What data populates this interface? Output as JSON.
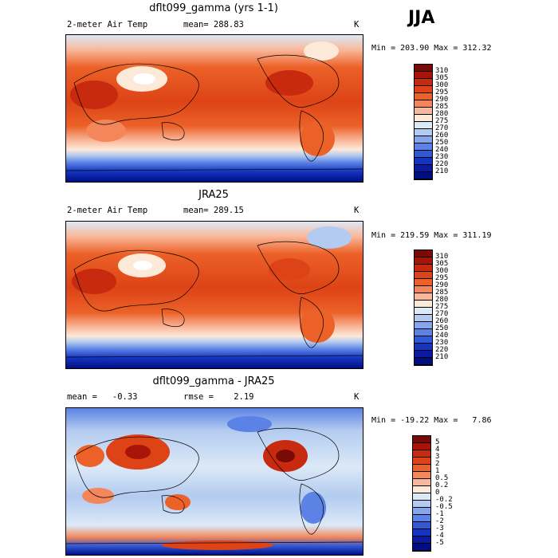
{
  "season": "JJA",
  "chart_data": [
    {
      "type": "heatmap",
      "title": "dflt099_gamma (yrs 1-1)",
      "left_label": "2-meter Air Temp",
      "center_label": "mean= 288.83",
      "unit": "K",
      "minmax": "Min = 203.90 Max = 312.32",
      "colorbar_ticks": [
        "310",
        "305",
        "300",
        "295",
        "290",
        "285",
        "280",
        "275",
        "270",
        "260",
        "250",
        "240",
        "230",
        "220",
        "210"
      ],
      "colors": [
        "#7a0a06",
        "#a81408",
        "#c82a0f",
        "#dd4316",
        "#ec6128",
        "#f3865a",
        "#f9b89b",
        "#fde9d8",
        "#dce9f7",
        "#b3cbf0",
        "#85a6ea",
        "#5b82e4",
        "#3159d6",
        "#1534c1",
        "#0b1aa0",
        "#000e83"
      ]
    },
    {
      "type": "heatmap",
      "title": "JRA25",
      "left_label": "2-meter Air Temp",
      "center_label": "mean= 289.15",
      "unit": "K",
      "minmax": "Min = 219.59 Max = 311.19",
      "colorbar_ticks": [
        "310",
        "305",
        "300",
        "295",
        "290",
        "285",
        "280",
        "275",
        "270",
        "260",
        "250",
        "240",
        "230",
        "220",
        "210"
      ],
      "colors": [
        "#7a0a06",
        "#a81408",
        "#c82a0f",
        "#dd4316",
        "#ec6128",
        "#f3865a",
        "#f9b89b",
        "#fde9d8",
        "#dce9f7",
        "#b3cbf0",
        "#85a6ea",
        "#5b82e4",
        "#3159d6",
        "#1534c1",
        "#0b1aa0",
        "#000e83"
      ]
    },
    {
      "type": "heatmap",
      "title": "dflt099_gamma - JRA25",
      "left_label": "mean =   -0.33",
      "center_label": "rmse =    2.19",
      "unit": "K",
      "minmax": "Min = -19.22 Max =   7.86",
      "colorbar_ticks": [
        "5",
        "4",
        "3",
        "2",
        "1",
        "0.5",
        "0.2",
        "0",
        "-0.2",
        "-0.5",
        "-1",
        "-2",
        "-3",
        "-4",
        "-5"
      ],
      "colors": [
        "#7a0a06",
        "#a81408",
        "#c82a0f",
        "#dd4316",
        "#ec6128",
        "#f3865a",
        "#f9b89b",
        "#fde9d8",
        "#dce9f7",
        "#b3cbf0",
        "#85a6ea",
        "#5b82e4",
        "#3159d6",
        "#1534c1",
        "#0b1aa0",
        "#000e83"
      ]
    }
  ]
}
